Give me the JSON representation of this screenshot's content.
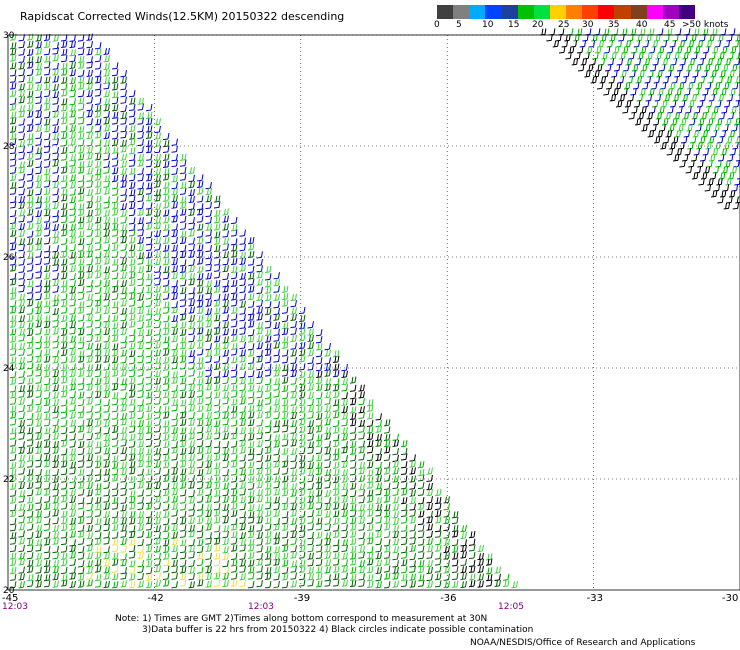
{
  "title": "Rapidscat Corrected Winds(12.5KM) 20150322 descending",
  "colorbar": {
    "colors": [
      "#404040",
      "#808080",
      "#00aaff",
      "#0044ff",
      "#2040a0",
      "#00c000",
      "#00e040",
      "#ffd000",
      "#ff8000",
      "#ff4000",
      "#ff0000",
      "#c04000",
      "#804020",
      "#ff00ff",
      "#a000c0",
      "#400080"
    ],
    "labels": [
      "0",
      "5",
      "10",
      "15",
      "20",
      "25",
      "30",
      "35",
      "40",
      "45",
      ">50 knots"
    ]
  },
  "map": {
    "lat_labels": [
      "30",
      "28",
      "26",
      "24",
      "22",
      "20"
    ],
    "lon_labels": [
      "-45",
      "-42",
      "-39",
      "-36",
      "-33",
      "-30"
    ],
    "time_labels": [
      "12:03",
      "12:03",
      "12:05"
    ],
    "lat_range": [
      20,
      30
    ],
    "lon_range": [
      -45,
      -30
    ],
    "grid": "dotted",
    "wind_colors": {
      "blue": "#0000cc",
      "green": "#00b400",
      "lightgreen": "#40d040",
      "darkgreen": "#006000",
      "black": "#000000",
      "yellow": "#f0e040"
    }
  },
  "notes": {
    "line1": "Note: 1) Times are GMT 2)Times along bottom correspond to measurement at 30N",
    "line2": "3)Data buffer is 22 hrs from 20150322 4) Black circles indicate possible contamination"
  },
  "credit": "NOAA/NESDIS/Office of Research and Applications"
}
